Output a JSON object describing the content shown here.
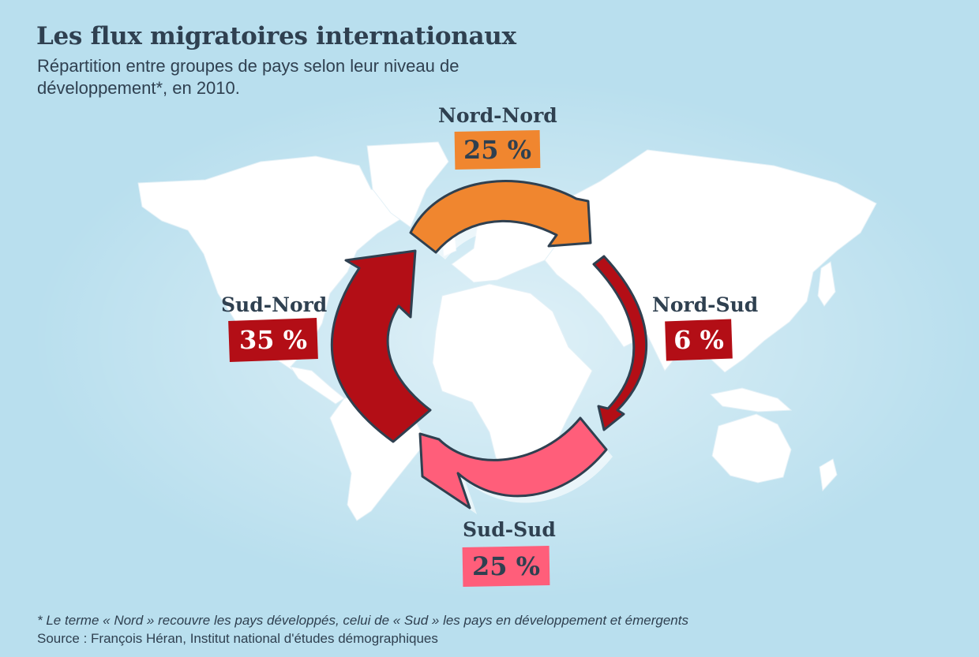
{
  "title": "Les flux migratoires internationaux",
  "subtitle": "Répartition entre groupes de pays selon leur niveau de développement*, en 2010.",
  "flows": {
    "nord_nord": {
      "label": "Nord-Nord",
      "value": "25 %",
      "color": "#f0862f"
    },
    "nord_sud": {
      "label": "Nord-Sud",
      "value": "6 %",
      "color": "#b30e16"
    },
    "sud_sud": {
      "label": "Sud-Sud",
      "value": "25 %",
      "color": "#ff5e7a"
    },
    "sud_nord": {
      "label": "Sud-Nord",
      "value": "35 %",
      "color": "#b30e16"
    }
  },
  "footnote": "* Le terme « Nord » recouvre les pays développés, celui de « Sud » les pays en développement et émergents",
  "source": "Source : François Héran, Institut national d'études démographiques",
  "colors": {
    "background": "#b9dfee",
    "land": "#ffffff",
    "text": "#2f4050"
  }
}
